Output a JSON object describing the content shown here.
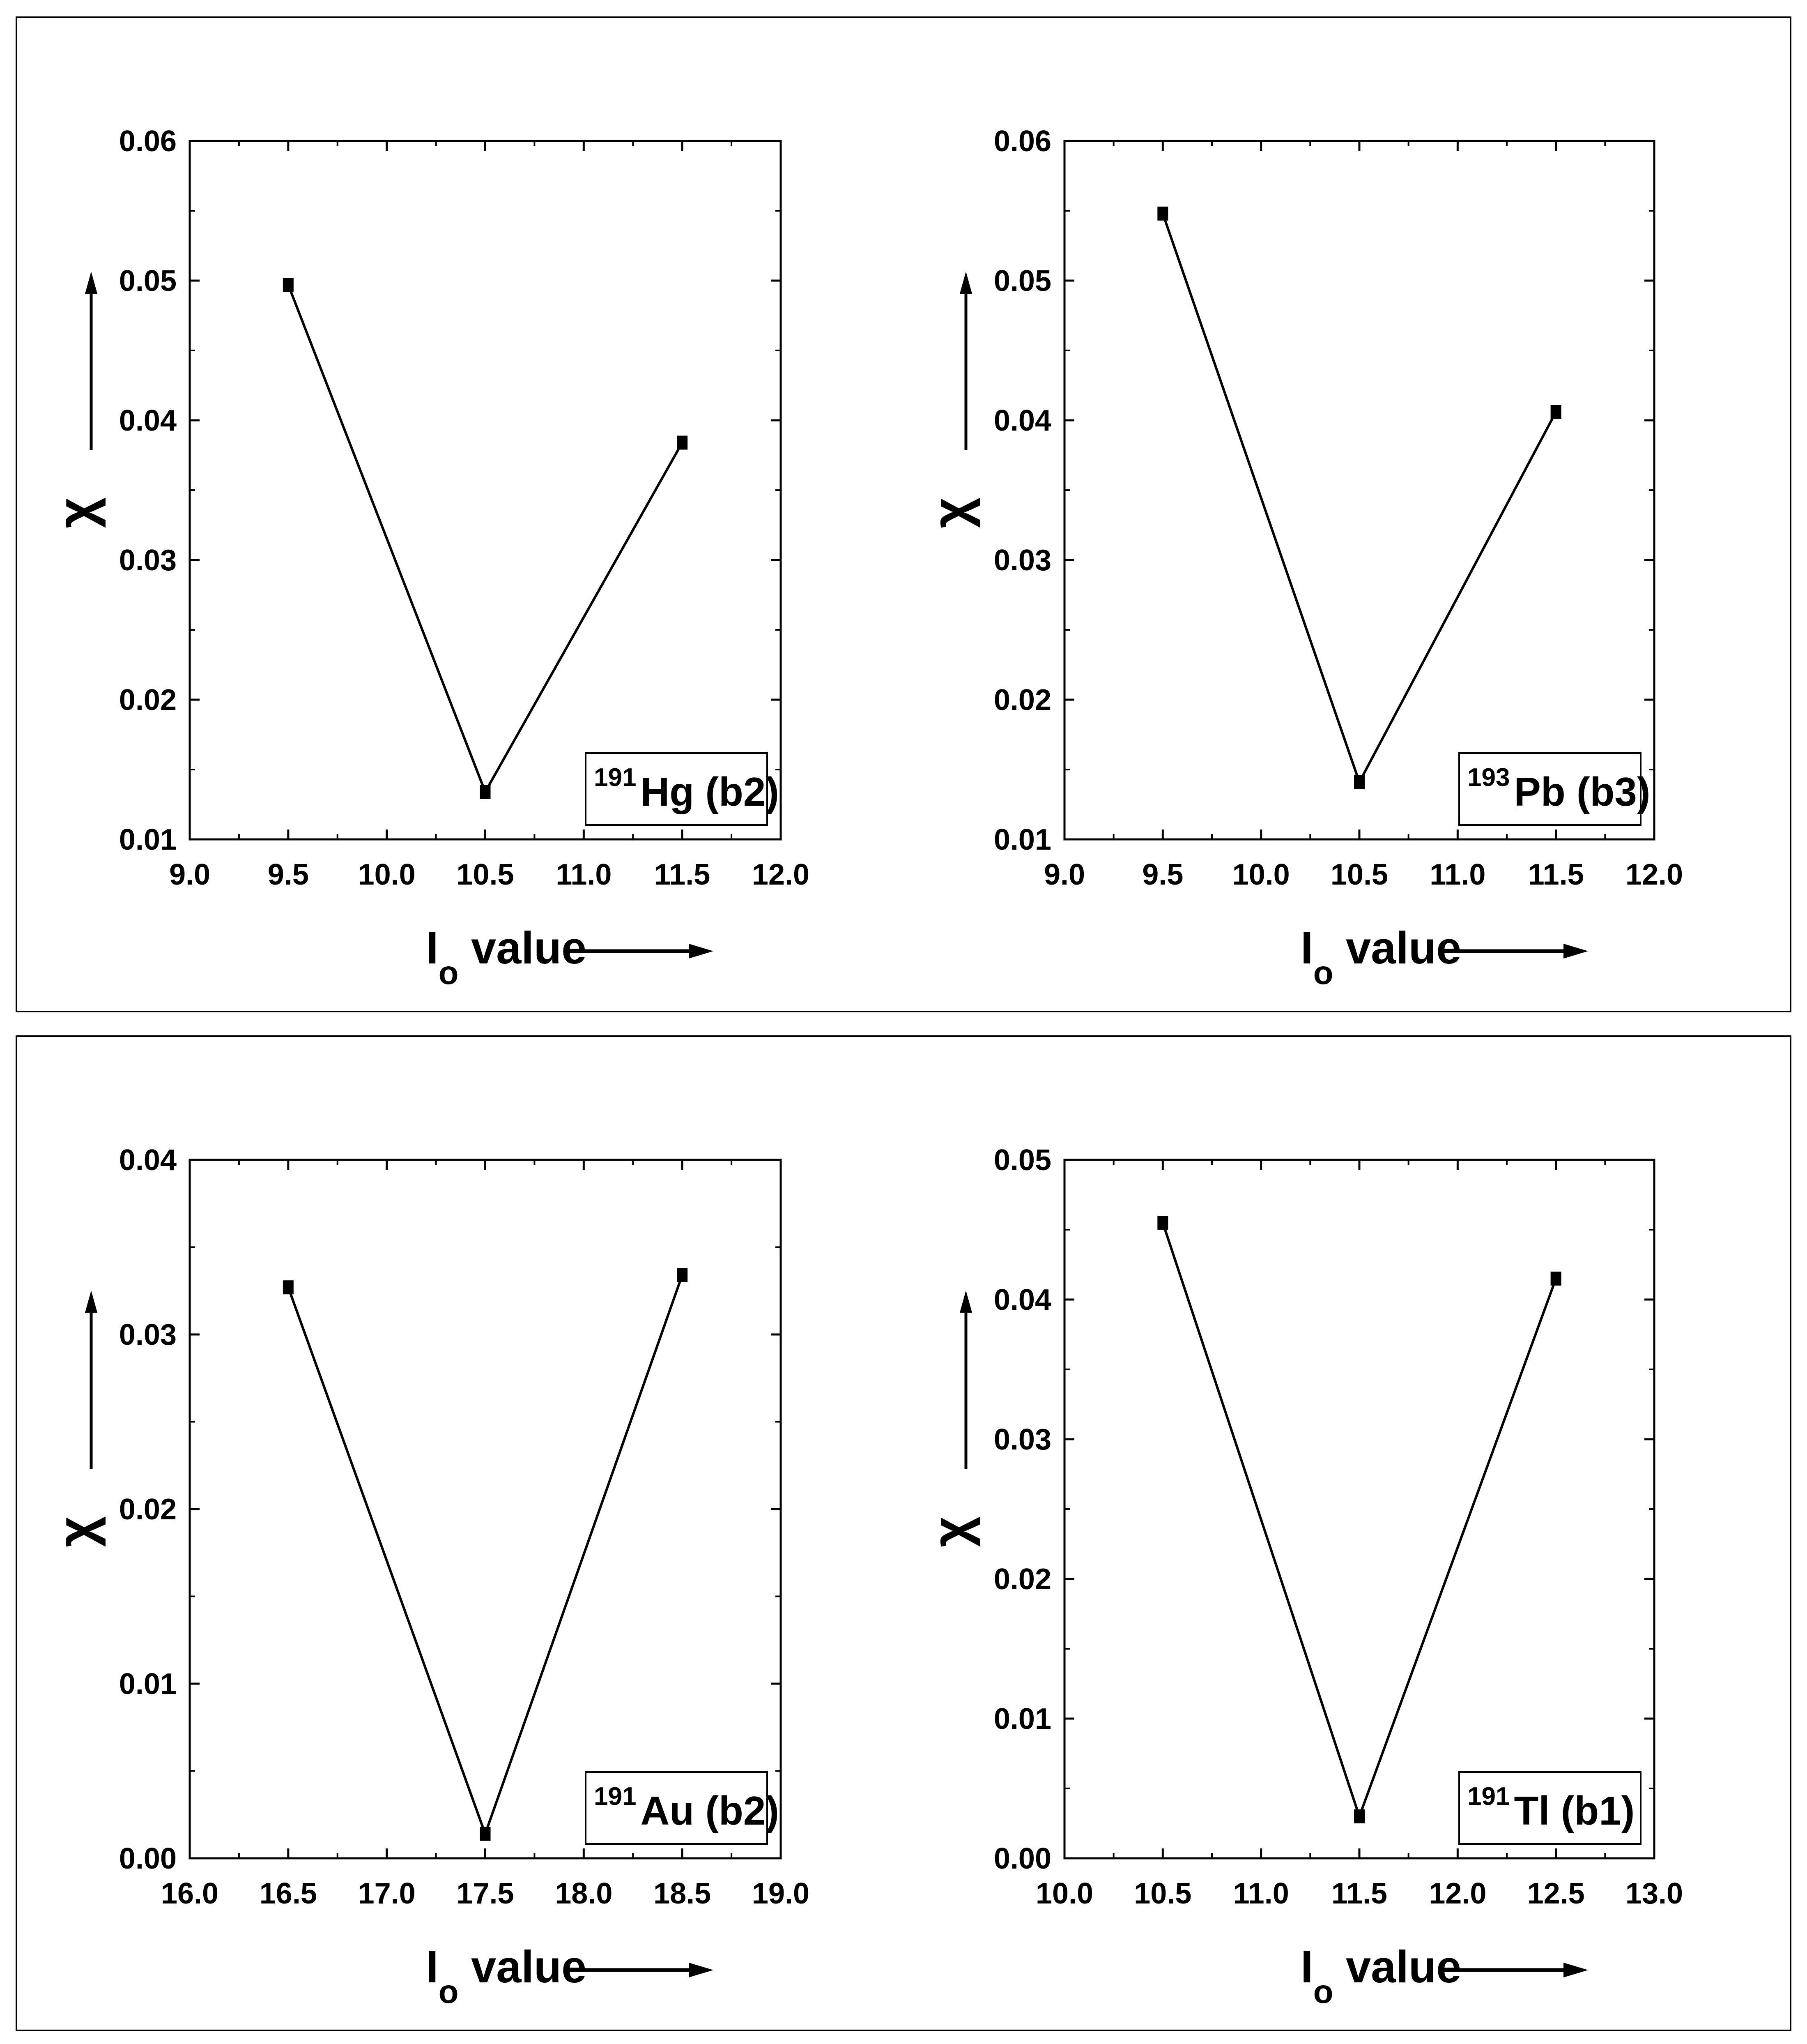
{
  "panels": [
    {
      "x_axis_label": {
        "main": "I",
        "sub": "o",
        "rest": " value"
      },
      "y_axis_label": "χ",
      "nucleus": {
        "mass": "191",
        "text": "Hg (b2)"
      }
    },
    {
      "x_axis_label": {
        "main": "I",
        "sub": "o",
        "rest": " value"
      },
      "y_axis_label": "χ",
      "nucleus": {
        "mass": "193",
        "text": "Pb (b3)"
      }
    },
    {
      "x_axis_label": {
        "main": "I",
        "sub": "o",
        "rest": " value"
      },
      "y_axis_label": "χ",
      "nucleus": {
        "mass": "191",
        "text": "Au (b2)"
      }
    },
    {
      "x_axis_label": {
        "main": "I",
        "sub": "o",
        "rest": " value"
      },
      "y_axis_label": "χ",
      "nucleus": {
        "mass": "191",
        "text": "Tl (b1)"
      }
    }
  ],
  "chart_data": [
    {
      "type": "line",
      "xlabel": "Io value",
      "ylabel": "χ",
      "annotation": "191Hg (b2)",
      "xlim": [
        9.0,
        12.0
      ],
      "ylim": [
        0.01,
        0.06
      ],
      "xticks": [
        "9.0",
        "9.5",
        "10.0",
        "10.5",
        "11.0",
        "11.5",
        "12.0"
      ],
      "yticks": [
        "0.01",
        "0.02",
        "0.03",
        "0.04",
        "0.05",
        "0.06"
      ],
      "x": [
        9.5,
        10.5,
        11.5
      ],
      "y": [
        0.0497,
        0.0134,
        0.0384
      ],
      "marker": "square"
    },
    {
      "type": "line",
      "xlabel": "Io value",
      "ylabel": "χ",
      "annotation": "193Pb (b3)",
      "xlim": [
        9.0,
        12.0
      ],
      "ylim": [
        0.01,
        0.06
      ],
      "xticks": [
        "9.0",
        "9.5",
        "10.0",
        "10.5",
        "11.0",
        "11.5",
        "12.0"
      ],
      "yticks": [
        "0.01",
        "0.02",
        "0.03",
        "0.04",
        "0.05",
        "0.06"
      ],
      "x": [
        9.5,
        10.5,
        11.5
      ],
      "y": [
        0.0548,
        0.0141,
        0.0406
      ],
      "marker": "square"
    },
    {
      "type": "line",
      "xlabel": "Io value",
      "ylabel": "χ",
      "annotation": "191Au (b2)",
      "xlim": [
        16.0,
        19.0
      ],
      "ylim": [
        0.0,
        0.04
      ],
      "xticks": [
        "16.0",
        "16.5",
        "17.0",
        "17.5",
        "18.0",
        "18.5",
        "19.0"
      ],
      "yticks": [
        "0.00",
        "0.01",
        "0.02",
        "0.03",
        "0.04"
      ],
      "x": [
        16.5,
        17.5,
        18.5
      ],
      "y": [
        0.0327,
        0.0014,
        0.0334
      ],
      "marker": "square"
    },
    {
      "type": "line",
      "xlabel": "Io value",
      "ylabel": "χ",
      "annotation": "191Tl (b1)",
      "xlim": [
        10.0,
        13.0
      ],
      "ylim": [
        0.0,
        0.05
      ],
      "xticks": [
        "10.0",
        "10.5",
        "11.0",
        "11.5",
        "12.0",
        "12.5",
        "13.0"
      ],
      "yticks": [
        "0.00",
        "0.01",
        "0.02",
        "0.03",
        "0.04",
        "0.05"
      ],
      "x": [
        10.5,
        11.5,
        12.5
      ],
      "y": [
        0.0455,
        0.003,
        0.0415
      ],
      "marker": "square"
    }
  ],
  "colors": {
    "line": "#000000",
    "marker": "#000000",
    "background": "#ffffff"
  }
}
